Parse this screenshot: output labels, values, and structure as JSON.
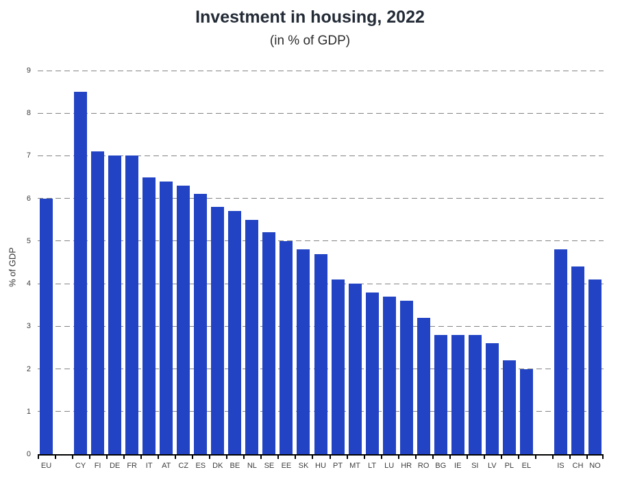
{
  "page": {
    "background": "#ffffff"
  },
  "chart_data": {
    "type": "bar",
    "title": "Investment in housing, 2022",
    "subtitle": "(in % of GDP)",
    "xlabel": "",
    "ylabel": "% of GDP",
    "ylim": [
      0,
      9
    ],
    "yticks": [
      0,
      1,
      2,
      3,
      4,
      5,
      6,
      7,
      8,
      9
    ],
    "grid": "horizontal-dashed",
    "legend_position": "none",
    "bar_color": "#2143c4",
    "categories": [
      "EU",
      "CY",
      "FI",
      "DE",
      "FR",
      "IT",
      "AT",
      "CZ",
      "ES",
      "DK",
      "BE",
      "NL",
      "SE",
      "EE",
      "SK",
      "HU",
      "PT",
      "MT",
      "LT",
      "LU",
      "HR",
      "RO",
      "BG",
      "IE",
      "SI",
      "LV",
      "PL",
      "EL",
      "IS",
      "CH",
      "NO"
    ],
    "values": [
      6.0,
      8.5,
      7.1,
      7.0,
      7.0,
      6.5,
      6.4,
      6.3,
      6.1,
      5.8,
      5.7,
      5.5,
      5.2,
      5.0,
      4.8,
      4.7,
      4.1,
      4.0,
      3.8,
      3.7,
      3.6,
      3.2,
      2.8,
      2.8,
      2.8,
      2.6,
      2.2,
      2.0,
      4.8,
      4.4,
      4.1
    ],
    "gaps_after": [
      "EU",
      "EL"
    ]
  }
}
